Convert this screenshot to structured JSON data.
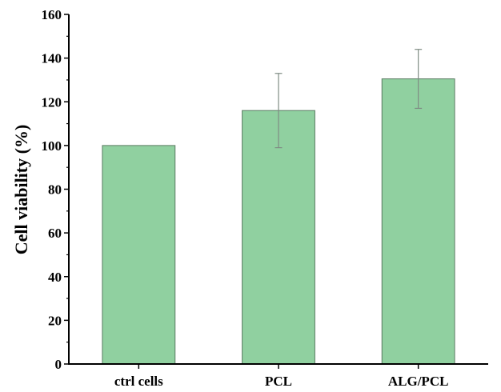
{
  "chart_data": {
    "type": "bar",
    "title": "",
    "xlabel": "",
    "ylabel": "Cell viability (%)",
    "categories": [
      "ctrl cells",
      "PCL",
      "ALG/PCL"
    ],
    "values": [
      100,
      116,
      130.5
    ],
    "error": [
      null,
      17,
      13.5
    ],
    "ylim": [
      0,
      160
    ],
    "yticks": [
      0,
      20,
      40,
      60,
      80,
      100,
      120,
      140,
      160
    ],
    "grid": false,
    "legend": "none",
    "bar_color": "#90d0a0",
    "bar_edge_color": "#5a7a62",
    "error_bar_color": "#7f8c84",
    "axis_color": "#000000"
  }
}
